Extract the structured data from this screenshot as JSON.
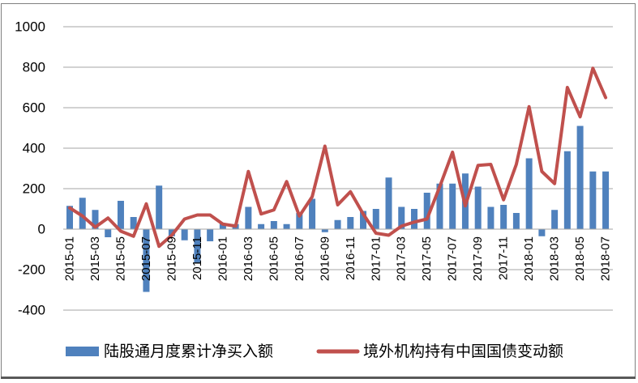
{
  "colors": {
    "bar": "#4F81BD",
    "line": "#C0504D",
    "gridline": "#A6A6A6",
    "axis_text": "#000000",
    "chart_border": "#808080",
    "bottom_edge": "#595959",
    "background": "#FFFFFF"
  },
  "chart_data": {
    "type": "bar",
    "title": "",
    "xlabel": "",
    "ylabel": "",
    "grid": true,
    "legend_position": "bottom",
    "ylim": [
      -400,
      1000
    ],
    "y_ticks": [
      1000,
      800,
      600,
      400,
      200,
      0,
      -200,
      -400
    ],
    "x_tick_labels": [
      "2015-01",
      "2015-03",
      "2015-05",
      "2015-07",
      "2015-09",
      "2015-11",
      "2016-01",
      "2016-03",
      "2016-05",
      "2016-07",
      "2016-09",
      "2016-11",
      "2017-01",
      "2017-03",
      "2017-05",
      "2017-07",
      "2017-09",
      "2017-11",
      "2018-01",
      "2018-03",
      "2018-05",
      "2018-07"
    ],
    "categories": [
      "2015-01",
      "2015-02",
      "2015-03",
      "2015-04",
      "2015-05",
      "2015-06",
      "2015-07",
      "2015-08",
      "2015-09",
      "2015-10",
      "2015-11",
      "2015-12",
      "2016-01",
      "2016-02",
      "2016-03",
      "2016-04",
      "2016-05",
      "2016-06",
      "2016-07",
      "2016-08",
      "2016-09",
      "2016-10",
      "2016-11",
      "2016-12",
      "2017-01",
      "2017-02",
      "2017-03",
      "2017-04",
      "2017-05",
      "2017-06",
      "2017-07",
      "2017-08",
      "2017-09",
      "2017-10",
      "2017-11",
      "2017-12",
      "2018-01",
      "2018-02",
      "2018-03",
      "2018-04",
      "2018-05",
      "2018-06",
      "2018-07"
    ],
    "series": [
      {
        "name": "陆股通月度累计净买入额",
        "type": "bar",
        "color": "#4F81BD",
        "values": [
          115,
          155,
          95,
          -40,
          140,
          60,
          -310,
          215,
          -35,
          -55,
          -170,
          -60,
          30,
          25,
          110,
          25,
          40,
          25,
          80,
          150,
          -15,
          45,
          60,
          90,
          100,
          255,
          110,
          100,
          180,
          225,
          225,
          275,
          210,
          110,
          120,
          80,
          350,
          -35,
          95,
          385,
          510,
          285,
          285
        ]
      },
      {
        "name": "境外机构持有中国国债变动额",
        "type": "line",
        "color": "#C0504D",
        "values": [
          105,
          65,
          10,
          55,
          -10,
          -35,
          125,
          -85,
          -30,
          50,
          70,
          70,
          25,
          15,
          285,
          75,
          95,
          235,
          65,
          160,
          410,
          120,
          185,
          75,
          -20,
          -30,
          15,
          35,
          50,
          210,
          380,
          115,
          315,
          320,
          145,
          320,
          605,
          285,
          225,
          700,
          555,
          795,
          650
        ]
      }
    ]
  }
}
